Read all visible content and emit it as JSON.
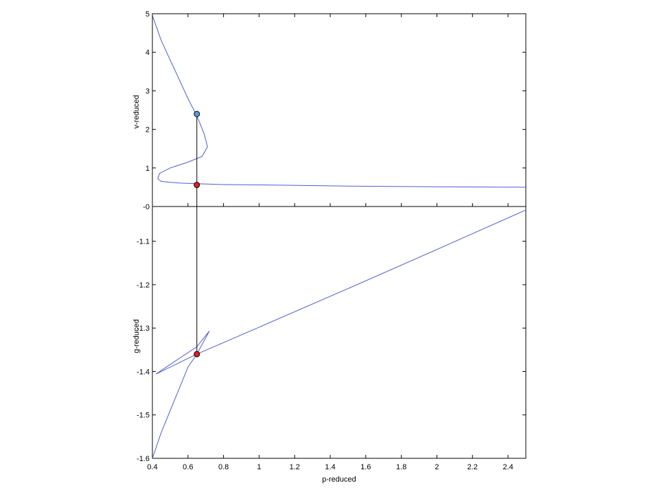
{
  "chart_data": [
    {
      "type": "line",
      "panel": "top",
      "xlabel": "",
      "ylabel": "v-reduced",
      "xlim": [
        0.4,
        2.5
      ],
      "ylim": [
        0,
        5
      ],
      "yticks": [
        0,
        1,
        2,
        3,
        4,
        5
      ],
      "ytick_labels": [
        "-0",
        "1",
        "2",
        "3",
        "4",
        "5"
      ],
      "grid": false,
      "line_color": "#4a5bd4",
      "series": [
        {
          "x": [
            0.4,
            0.45,
            0.5,
            0.55,
            0.6,
            0.65,
            0.69,
            0.71,
            0.68,
            0.6,
            0.5,
            0.44,
            0.43,
            0.45,
            0.55,
            0.65,
            0.8,
            1.0,
            1.5,
            2.0,
            2.5
          ],
          "y": [
            4.95,
            4.3,
            3.8,
            3.3,
            2.8,
            2.35,
            1.9,
            1.55,
            1.3,
            1.15,
            1.0,
            0.86,
            0.72,
            0.65,
            0.61,
            0.59,
            0.57,
            0.56,
            0.53,
            0.51,
            0.5
          ]
        }
      ],
      "markers": [
        {
          "x": 0.65,
          "y": 2.4,
          "color": "#5b9bd5"
        },
        {
          "x": 0.65,
          "y": 0.56,
          "color": "#e02020"
        }
      ]
    },
    {
      "type": "line",
      "panel": "bottom",
      "xlabel": "p-reduced",
      "ylabel": "g-reduced",
      "xlim": [
        0.4,
        2.5
      ],
      "ylim": [
        -1.6,
        -1.02
      ],
      "xticks": [
        0.4,
        0.6,
        0.8,
        1,
        1.2,
        1.4,
        1.6,
        1.8,
        2,
        2.2,
        2.4
      ],
      "xtick_labels": [
        "0.4",
        "0.6",
        "0.8",
        "1",
        "1.2",
        "1.4",
        "1.6",
        "1.8",
        "2",
        "2.2",
        "2.4"
      ],
      "yticks": [
        -1.1,
        -1.2,
        -1.3,
        -1.4,
        -1.5,
        -1.6
      ],
      "ytick_labels": [
        "-1.1",
        "-1.2",
        "-1.3",
        "-1.4",
        "-1.5",
        "-1.6"
      ],
      "grid": false,
      "line_color": "#4a5bd4",
      "series": [
        {
          "x": [
            0.4,
            0.45,
            0.5,
            0.55,
            0.6,
            0.65,
            0.72,
            0.65,
            0.55,
            0.42,
            0.65,
            1.0,
            1.5,
            2.0,
            2.5
          ],
          "y": [
            -1.6,
            -1.54,
            -1.49,
            -1.44,
            -1.39,
            -1.36,
            -1.307,
            -1.343,
            -1.37,
            -1.406,
            -1.36,
            -1.298,
            -1.209,
            -1.119,
            -1.028
          ]
        }
      ],
      "markers": [
        {
          "x": 0.65,
          "y": -1.36,
          "color": "#e02020"
        }
      ]
    }
  ],
  "connector": {
    "x": 0.65,
    "from_y_top": 2.4,
    "to_y_bottom": -1.36,
    "color": "#000000"
  }
}
